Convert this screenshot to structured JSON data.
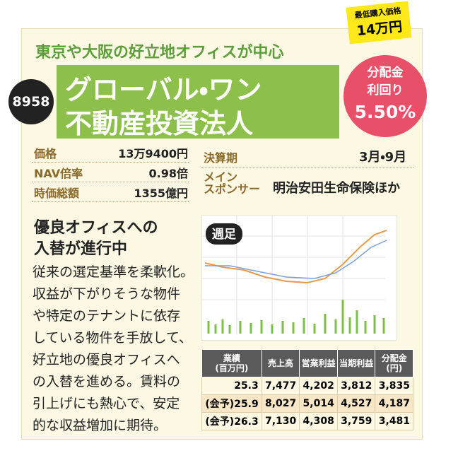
{
  "badge": {
    "label": "最低購入価格",
    "price": "14万円"
  },
  "lead": "東京や大阪の好立地オフィスが中心",
  "code": "8958",
  "title": [
    "グローバル・ワン",
    "不動産投資法人"
  ],
  "yield": {
    "label": [
      "分配金",
      "利回り"
    ],
    "value": "5.50%"
  },
  "info": [
    {
      "label": "価格",
      "value": "13万9400円"
    },
    {
      "label": "NAV倍率",
      "value": "0.98倍"
    },
    {
      "label": "時価総額",
      "value": "1355億円"
    }
  ],
  "settlement": {
    "label": "決算期",
    "value": "3月・9月"
  },
  "sponsor": {
    "label": [
      "メイン",
      "スポンサー"
    ],
    "value": "明治安田生命保険ほか"
  },
  "headline": [
    "優良オフィスへの",
    "入替が進行中"
  ],
  "body": [
    "従来の選定基準を柔軟化。",
    "収益が下がりそうな物件",
    "や特定のテナントに依存",
    "している物件を手放して、",
    "好立地の優良オフィスへ",
    "の入替を進める。賃料の",
    "引上げにも熱心で、安定",
    "的な収益増加に期待。"
  ],
  "chart": {
    "label": "週足"
  },
  "table": {
    "headers": [
      [
        "業績",
        "(百万円)"
      ],
      [
        "売上高"
      ],
      [
        "営業利益"
      ],
      [
        "当期利益"
      ],
      [
        "分配金",
        "(円)"
      ]
    ],
    "rows": [
      [
        "25.3",
        "7,477",
        "4,202",
        "3,812",
        "3,835"
      ],
      [
        "(会予)25.9",
        "8,027",
        "5,014",
        "4,527",
        "4,187"
      ],
      [
        "(会予)26.3",
        "7,130",
        "4,308",
        "3,759",
        "3,481"
      ]
    ]
  }
}
